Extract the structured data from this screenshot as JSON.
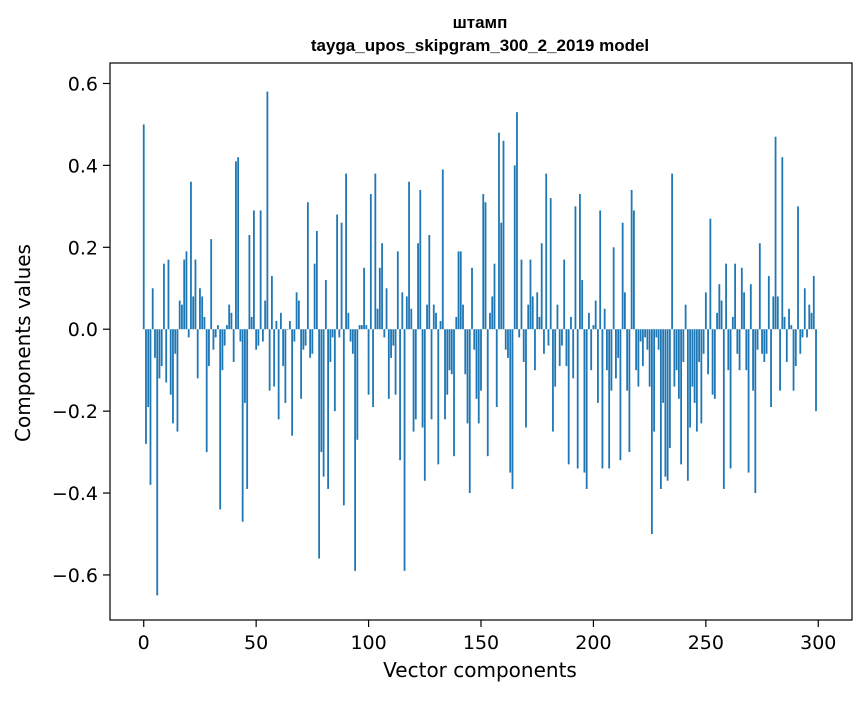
{
  "chart_data": {
    "type": "bar",
    "title": "штамп",
    "subtitle": "tayga_upos_skipgram_300_2_2019 model",
    "xlabel": "Vector components",
    "ylabel": "Components values",
    "xlim": [
      -15,
      315
    ],
    "ylim": [
      -0.71,
      0.65
    ],
    "xticks": [
      0,
      50,
      100,
      150,
      200,
      250,
      300
    ],
    "xtick_labels": [
      "0",
      "50",
      "100",
      "150",
      "200",
      "250",
      "300"
    ],
    "yticks": [
      -0.6,
      -0.4,
      -0.2,
      0.0,
      0.2,
      0.4,
      0.6
    ],
    "ytick_labels": [
      "−0.6",
      "−0.4",
      "−0.2",
      "0.0",
      "0.2",
      "0.4",
      "0.6"
    ],
    "grid": false,
    "bar_color": "#1f77b4",
    "x": [
      0,
      1,
      2,
      3,
      4,
      5,
      6,
      7,
      8,
      9,
      10,
      11,
      12,
      13,
      14,
      15,
      16,
      17,
      18,
      19,
      20,
      21,
      22,
      23,
      24,
      25,
      26,
      27,
      28,
      29,
      30,
      31,
      32,
      33,
      34,
      35,
      36,
      37,
      38,
      39,
      40,
      41,
      42,
      43,
      44,
      45,
      46,
      47,
      48,
      49,
      50,
      51,
      52,
      53,
      54,
      55,
      56,
      57,
      58,
      59,
      60,
      61,
      62,
      63,
      64,
      65,
      66,
      67,
      68,
      69,
      70,
      71,
      72,
      73,
      74,
      75,
      76,
      77,
      78,
      79,
      80,
      81,
      82,
      83,
      84,
      85,
      86,
      87,
      88,
      89,
      90,
      91,
      92,
      93,
      94,
      95,
      96,
      97,
      98,
      99,
      100,
      101,
      102,
      103,
      104,
      105,
      106,
      107,
      108,
      109,
      110,
      111,
      112,
      113,
      114,
      115,
      116,
      117,
      118,
      119,
      120,
      121,
      122,
      123,
      124,
      125,
      126,
      127,
      128,
      129,
      130,
      131,
      132,
      133,
      134,
      135,
      136,
      137,
      138,
      139,
      140,
      141,
      142,
      143,
      144,
      145,
      146,
      147,
      148,
      149,
      150,
      151,
      152,
      153,
      154,
      155,
      156,
      157,
      158,
      159,
      160,
      161,
      162,
      163,
      164,
      165,
      166,
      167,
      168,
      169,
      170,
      171,
      172,
      173,
      174,
      175,
      176,
      177,
      178,
      179,
      180,
      181,
      182,
      183,
      184,
      185,
      186,
      187,
      188,
      189,
      190,
      191,
      192,
      193,
      194,
      195,
      196,
      197,
      198,
      199,
      200,
      201,
      202,
      203,
      204,
      205,
      206,
      207,
      208,
      209,
      210,
      211,
      212,
      213,
      214,
      215,
      216,
      217,
      218,
      219,
      220,
      221,
      222,
      223,
      224,
      225,
      226,
      227,
      228,
      229,
      230,
      231,
      232,
      233,
      234,
      235,
      236,
      237,
      238,
      239,
      240,
      241,
      242,
      243,
      244,
      245,
      246,
      247,
      248,
      249,
      250,
      251,
      252,
      253,
      254,
      255,
      256,
      257,
      258,
      259,
      260,
      261,
      262,
      263,
      264,
      265,
      266,
      267,
      268,
      269,
      270,
      271,
      272,
      273,
      274,
      275,
      276,
      277,
      278,
      279,
      280,
      281,
      282,
      283,
      284,
      285,
      286,
      287,
      288,
      289,
      290,
      291,
      292,
      293,
      294,
      295,
      296,
      297,
      298,
      299
    ],
    "values": [
      0.5,
      -0.28,
      -0.19,
      -0.38,
      0.1,
      -0.07,
      -0.65,
      -0.12,
      -0.09,
      0.16,
      -0.13,
      0.17,
      -0.16,
      -0.23,
      -0.06,
      -0.25,
      0.07,
      0.06,
      0.17,
      0.19,
      -0.02,
      0.36,
      0.08,
      0.17,
      -0.12,
      0.1,
      0.08,
      0.03,
      -0.3,
      -0.09,
      0.22,
      -0.05,
      -0.02,
      0.01,
      -0.44,
      -0.1,
      -0.04,
      0.01,
      0.06,
      0.04,
      -0.08,
      0.41,
      0.42,
      -0.03,
      -0.47,
      -0.18,
      -0.39,
      0.23,
      0.03,
      0.29,
      -0.05,
      -0.04,
      0.29,
      -0.03,
      0.07,
      0.58,
      -0.15,
      0.13,
      -0.14,
      0.02,
      -0.22,
      0.04,
      -0.09,
      -0.18,
      0.0,
      0.02,
      -0.26,
      -0.03,
      0.09,
      0.07,
      -0.17,
      -0.05,
      -0.04,
      0.31,
      -0.07,
      -0.06,
      0.16,
      0.24,
      -0.56,
      -0.3,
      -0.36,
      0.12,
      -0.39,
      -0.08,
      -0.02,
      -0.2,
      0.28,
      -0.02,
      0.26,
      -0.43,
      0.38,
      0.04,
      -0.03,
      -0.06,
      -0.59,
      -0.27,
      0.01,
      0.01,
      0.15,
      0.01,
      -0.16,
      0.33,
      -0.19,
      0.38,
      0.05,
      0.15,
      0.21,
      -0.02,
      0.1,
      -0.17,
      -0.07,
      -0.04,
      -0.16,
      0.19,
      -0.32,
      0.09,
      -0.59,
      0.08,
      0.36,
      0.05,
      -0.25,
      -0.22,
      0.21,
      0.34,
      -0.24,
      -0.37,
      0.06,
      0.23,
      -0.22,
      0.06,
      0.04,
      -0.33,
      0.02,
      0.39,
      -0.22,
      -0.16,
      -0.1,
      -0.11,
      -0.31,
      0.03,
      0.19,
      0.19,
      0.06,
      -0.11,
      -0.23,
      -0.4,
      0.15,
      -0.05,
      -0.17,
      -0.23,
      -0.15,
      0.33,
      0.31,
      -0.31,
      0.04,
      0.08,
      0.16,
      -0.19,
      0.48,
      0.26,
      0.46,
      -0.05,
      -0.07,
      -0.35,
      -0.39,
      0.4,
      0.53,
      -0.02,
      0.17,
      -0.08,
      -0.24,
      0.06,
      0.17,
      0.08,
      -0.1,
      0.09,
      0.03,
      0.21,
      -0.06,
      0.38,
      -0.04,
      0.32,
      -0.25,
      -0.14,
      0.06,
      -0.09,
      -0.04,
      0.17,
      -0.09,
      -0.33,
      0.03,
      -0.12,
      0.3,
      -0.34,
      0.33,
      0.12,
      -0.35,
      -0.39,
      0.04,
      -0.1,
      0.01,
      0.07,
      -0.18,
      0.29,
      -0.34,
      0.05,
      -0.1,
      -0.34,
      -0.15,
      0.2,
      -0.12,
      -0.07,
      -0.32,
      0.26,
      0.09,
      -0.15,
      -0.3,
      0.34,
      0.29,
      -0.1,
      -0.14,
      -0.03,
      -0.09,
      -0.02,
      -0.05,
      -0.14,
      -0.5,
      -0.25,
      -0.02,
      -0.05,
      -0.39,
      -0.18,
      -0.36,
      -0.37,
      -0.29,
      0.38,
      -0.14,
      -0.1,
      -0.17,
      -0.33,
      -0.08,
      0.06,
      -0.37,
      -0.24,
      -0.14,
      -0.18,
      -0.25,
      -0.08,
      -0.23,
      -0.06,
      0.09,
      -0.11,
      0.27,
      -0.16,
      -0.17,
      0.04,
      0.11,
      0.07,
      -0.39,
      0.16,
      -0.1,
      -0.34,
      0.03,
      0.16,
      -0.06,
      -0.1,
      0.15,
      0.09,
      -0.1,
      -0.35,
      0.11,
      -0.15,
      -0.4,
      -0.05,
      0.21,
      -0.06,
      -0.08,
      -0.06,
      0.13,
      -0.19,
      0.08,
      0.47,
      0.08,
      -0.15,
      0.42,
      0.03,
      -0.08,
      0.05,
      0.01,
      -0.15,
      -0.09,
      0.3,
      -0.06,
      -0.02,
      0.1,
      -0.02,
      0.06,
      0.04,
      0.13,
      -0.2
    ]
  }
}
